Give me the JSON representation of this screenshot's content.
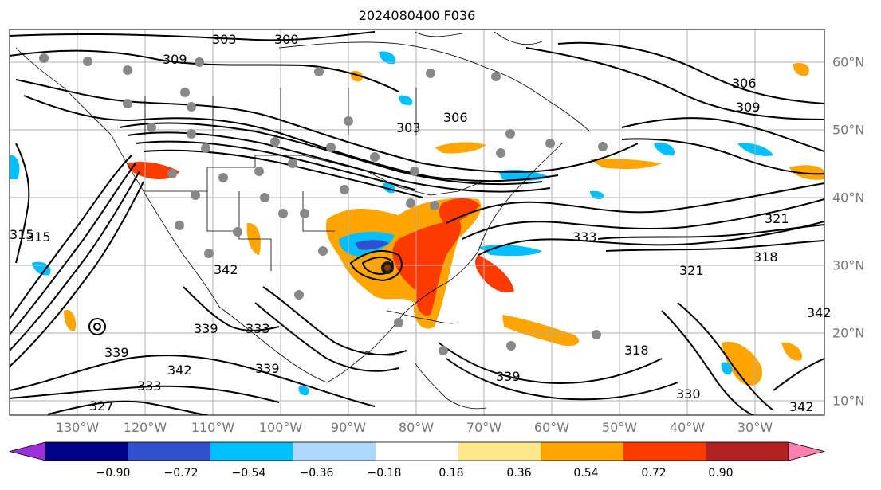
{
  "title": "2024080400 F036",
  "map": {
    "lon_labels": [
      "130°W",
      "120°W",
      "110°W",
      "100°W",
      "90°W",
      "80°W",
      "70°W",
      "60°W",
      "50°W",
      "40°W",
      "30°W"
    ],
    "lat_labels": [
      "60°N",
      "50°N",
      "40°N",
      "30°N",
      "20°N",
      "10°N"
    ],
    "contour_labels": [
      "303",
      "300",
      "309",
      "309",
      "306",
      "306",
      "303",
      "315",
      "333",
      "321",
      "321",
      "318",
      "315",
      "342",
      "339",
      "333",
      "339",
      "342",
      "339",
      "327",
      "333",
      "318",
      "330",
      "342",
      "339",
      "342"
    ],
    "land_color": "#ffffff",
    "contour_color": "#000000"
  },
  "colorbar": {
    "ticks": [
      "−0.90",
      "−0.72",
      "−0.54",
      "−0.36",
      "−0.18",
      "0.18",
      "0.36",
      "0.54",
      "0.72",
      "0.90"
    ],
    "colors": [
      "#9b30d9",
      "#00008b",
      "#3050d0",
      "#00bfff",
      "#add8ff",
      "#ffffff",
      "#ffe88a",
      "#ffa500",
      "#ff3a00",
      "#b22222",
      "#ff80b0"
    ]
  }
}
